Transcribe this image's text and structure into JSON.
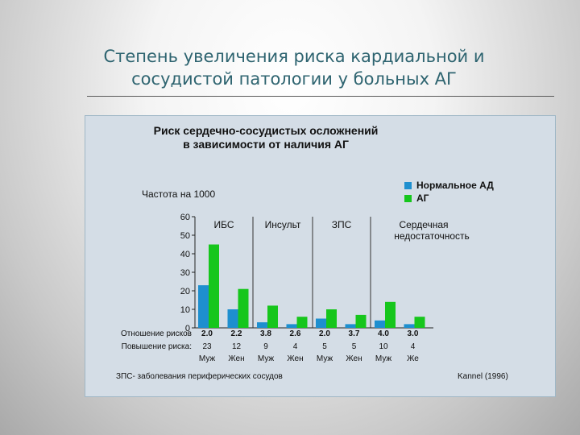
{
  "slide": {
    "title_line1": "Степень увеличения риска кардиальной и",
    "title_line2": "сосудистой патологии у больных АГ"
  },
  "colors": {
    "normal": "#1e8fcf",
    "ag": "#16c61c",
    "title": "#2e6470",
    "panel": "#d4dde6"
  },
  "chart_data": {
    "type": "bar",
    "title_line1": "Риск сердечно-сосудистых осложнений",
    "title_line2": "в зависимости от наличия АГ",
    "ylabel": "Частота на 1000",
    "ylim": [
      0,
      60
    ],
    "yticks": [
      "0",
      "10",
      "20",
      "30",
      "40",
      "50",
      "60"
    ],
    "legend": [
      "Нормальное АД",
      "АГ"
    ],
    "groups": [
      "ИБС",
      "Инсульт",
      "ЗПС",
      "Сердечная недостаточность"
    ],
    "categories": [
      "Муж",
      "Жен",
      "Муж",
      "Жен",
      "Муж",
      "Жен",
      "Муж",
      "Же"
    ],
    "series": [
      {
        "name": "Нормальное АД",
        "values": [
          23,
          10,
          3,
          2,
          5,
          2,
          4,
          2
        ]
      },
      {
        "name": "АГ",
        "values": [
          45,
          21,
          12,
          6,
          10,
          7,
          14,
          6
        ]
      }
    ],
    "risk_ratio_label": "Отношение рисков",
    "risk_ratio": [
      "2.0",
      "2.2",
      "3.8",
      "2.6",
      "2.0",
      "3.7",
      "4.0",
      "3.0"
    ],
    "risk_increase_label": "Повышение риска:",
    "risk_increase": [
      "23",
      "12",
      "9",
      "4",
      "5",
      "5",
      "10",
      "4"
    ],
    "footnote": "ЗПС- заболевания периферических сосудов",
    "source": "Kannel (1996)"
  }
}
